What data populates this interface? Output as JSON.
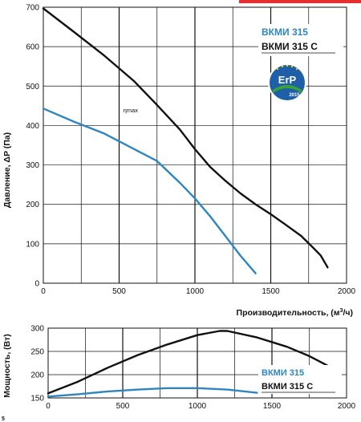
{
  "colors": {
    "series_blue": "#2e86c1",
    "series_black": "#111111",
    "grid": "#111111",
    "erp_badge": "#1f5fa8",
    "erp_green": "#3aa23a",
    "top_bar": "#e53030"
  },
  "page_number": "5",
  "chart_data": [
    {
      "type": "line",
      "ylabel": "Давление, ΔP (Па)",
      "xlabel": "Производительность, (м³/ч)",
      "xlim": [
        0,
        2000
      ],
      "ylim": [
        0,
        700
      ],
      "x_ticks": [
        0,
        500,
        1000,
        1500,
        2000
      ],
      "y_ticks": [
        0,
        100,
        200,
        300,
        400,
        500,
        600,
        700
      ],
      "grid": true,
      "legend_position": "top-right",
      "badge": {
        "icon": "erp-badge-icon",
        "text": "ErP",
        "year": "2015"
      },
      "annotations": [
        {
          "text": "ηmax",
          "x": 760,
          "y": 440
        }
      ],
      "series": [
        {
          "name": "ВКМИ 315",
          "color": "#2e86c1",
          "points": [
            [
              0,
              443
            ],
            [
              200,
              410
            ],
            [
              400,
              380
            ],
            [
              600,
              340
            ],
            [
              750,
              310
            ],
            [
              900,
              255
            ],
            [
              1000,
              215
            ],
            [
              1100,
              170
            ],
            [
              1200,
              120
            ],
            [
              1300,
              70
            ],
            [
              1400,
              25
            ]
          ]
        },
        {
          "name": "ВКМИ 315 С",
          "color": "#111111",
          "points": [
            [
              0,
              697
            ],
            [
              200,
              638
            ],
            [
              400,
              578
            ],
            [
              600,
              512
            ],
            [
              750,
              452
            ],
            [
              900,
              390
            ],
            [
              1000,
              340
            ],
            [
              1100,
              295
            ],
            [
              1200,
              260
            ],
            [
              1300,
              228
            ],
            [
              1400,
              200
            ],
            [
              1500,
              175
            ],
            [
              1600,
              148
            ],
            [
              1700,
              120
            ],
            [
              1780,
              90
            ],
            [
              1830,
              70
            ],
            [
              1875,
              40
            ]
          ]
        }
      ]
    },
    {
      "type": "line",
      "ylabel": "Мощность, (Вт)",
      "xlabel": "",
      "xlim": [
        0,
        2000
      ],
      "ylim": [
        150,
        300
      ],
      "x_ticks": [
        0,
        500,
        1000,
        1500,
        2000
      ],
      "y_ticks": [
        150,
        200,
        250,
        300
      ],
      "grid": true,
      "legend_position": "bottom-right",
      "series": [
        {
          "name": "ВКМИ 315",
          "color": "#2e86c1",
          "points": [
            [
              0,
              153
            ],
            [
              200,
              158
            ],
            [
              400,
              164
            ],
            [
              600,
              168
            ],
            [
              800,
              171
            ],
            [
              1000,
              171
            ],
            [
              1200,
              168
            ],
            [
              1400,
              161
            ]
          ]
        },
        {
          "name": "ВКМИ 315 С",
          "color": "#111111",
          "points": [
            [
              0,
              160
            ],
            [
              200,
              185
            ],
            [
              400,
              215
            ],
            [
              600,
              242
            ],
            [
              800,
              265
            ],
            [
              1000,
              285
            ],
            [
              1150,
              294
            ],
            [
              1200,
              294
            ],
            [
              1400,
              280
            ],
            [
              1600,
              260
            ],
            [
              1750,
              240
            ],
            [
              1870,
              220
            ]
          ]
        }
      ]
    }
  ]
}
